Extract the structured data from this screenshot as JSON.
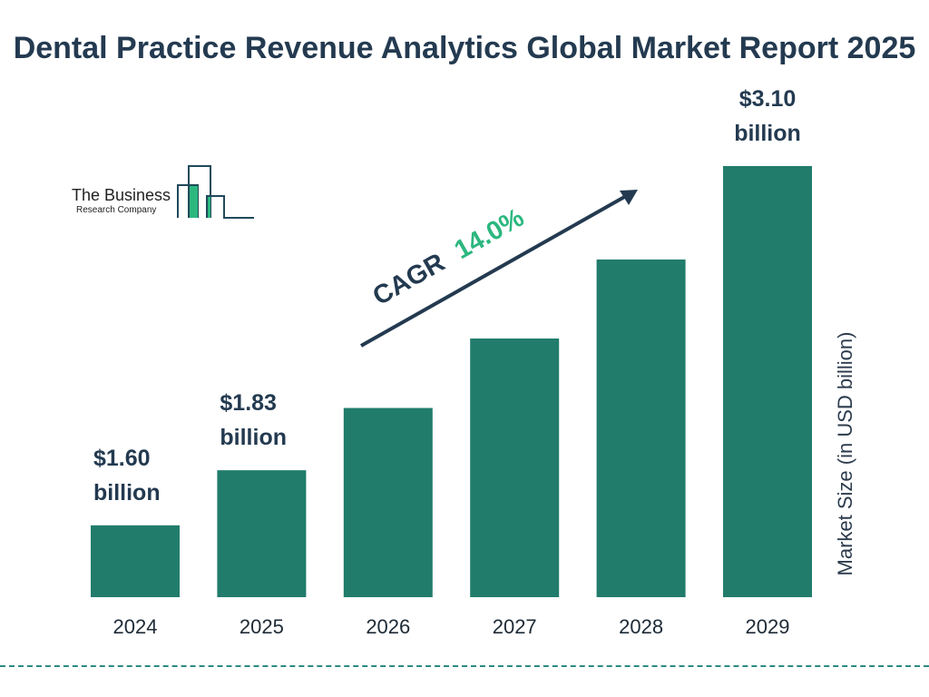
{
  "title": "Dental Practice Revenue Analytics Global Market Report 2025",
  "logo": {
    "line1": "The Business",
    "line2": "Research Company"
  },
  "chart_data": {
    "type": "bar",
    "categories": [
      "2024",
      "2025",
      "2026",
      "2027",
      "2028",
      "2029"
    ],
    "values": [
      1.6,
      1.83,
      2.09,
      2.38,
      2.71,
      3.1
    ],
    "data_labels": [
      {
        "index": 0,
        "value": "$1.60",
        "unit": "billion"
      },
      {
        "index": 1,
        "value": "$1.83",
        "unit": "billion"
      },
      {
        "index": 5,
        "value": "$3.10",
        "unit": "billion"
      }
    ],
    "title": "Dental Practice Revenue Analytics Global Market Report 2025",
    "xlabel": "",
    "ylabel": "Market Size (in USD billion)",
    "ylim": [
      1.3,
      3.1
    ],
    "grid": false,
    "annotation": {
      "label": "CAGR",
      "value": "14.0%"
    },
    "colors": {
      "bar": "#217c6c",
      "text": "#233a50",
      "cagr": "#2cb77f",
      "dash": "#2a8c82"
    }
  }
}
